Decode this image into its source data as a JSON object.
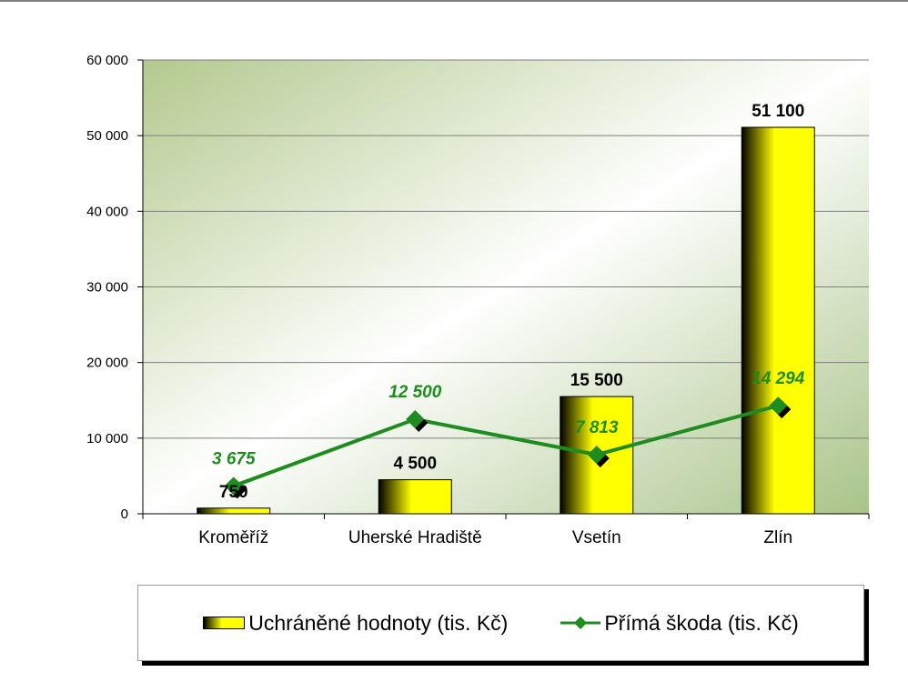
{
  "chart_data": {
    "type": "bar",
    "categories": [
      "Kroměříž",
      "Uherské Hradiště",
      "Vsetín",
      "Zlín"
    ],
    "y_ticks": [
      "0",
      "10 000",
      "20 000",
      "30 000",
      "40 000",
      "50 000",
      "60 000"
    ],
    "ylim": [
      0,
      60000
    ],
    "grid": true,
    "legend_position": "bottom",
    "series": [
      {
        "name": "Uchráněné hodnoty (tis. Kč)",
        "type": "bar",
        "values": [
          750,
          4500,
          15500,
          51100
        ],
        "labels": [
          "750",
          "4 500",
          "15 500",
          "51 100"
        ],
        "color": "#ffff00"
      },
      {
        "name": "Přímá škoda (tis. Kč)",
        "type": "line",
        "values": [
          3675,
          12500,
          7813,
          14294
        ],
        "labels": [
          "3 675",
          "12 500",
          "7 813",
          "14 294"
        ],
        "color": "#1e8c1e"
      }
    ]
  }
}
